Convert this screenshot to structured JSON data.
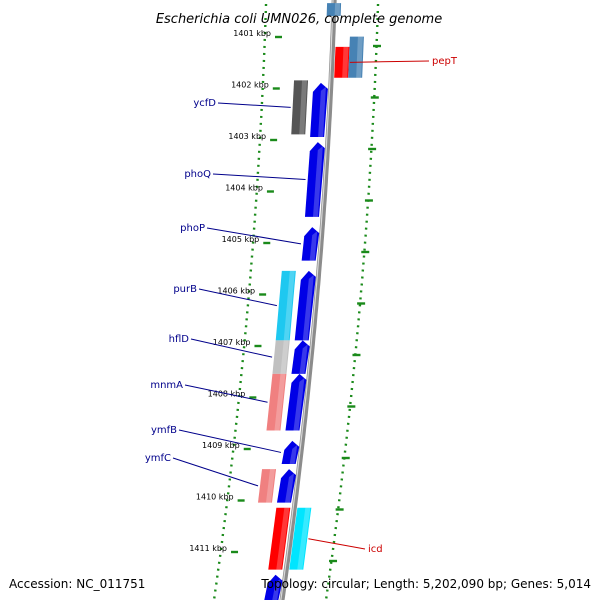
{
  "title": "Escherichia coli UMN026, complete genome",
  "footer": {
    "accession": "Accession: NC_011751",
    "summary": "Topology: circular; Length: 5,202,090 bp; Genes: 5,014"
  },
  "colors": {
    "background": "#ffffff",
    "backbone": "#8c8c8c",
    "tick_dots": "#1a8a1a",
    "label_blue": "#00008b",
    "label_red": "#cc0000",
    "forward_cds": "#0000e6",
    "reverse_red": "#ff0000",
    "steel_blue": "#4682b4",
    "cyan": "#00e5ff",
    "sky_blue": "#1ec8f0",
    "dark_gray": "#555555",
    "light_gray": "#c0c0c0",
    "salmon": "#f08080"
  },
  "ticks": [
    {
      "label": "1401 kbp",
      "pos": 1401
    },
    {
      "label": "1402 kbp",
      "pos": 1402
    },
    {
      "label": "1403 kbp",
      "pos": 1403
    },
    {
      "label": "1404 kbp",
      "pos": 1404
    },
    {
      "label": "1405 kbp",
      "pos": 1405
    },
    {
      "label": "1406 kbp",
      "pos": 1406
    },
    {
      "label": "1407 kbp",
      "pos": 1407
    },
    {
      "label": "1408 kbp",
      "pos": 1408
    },
    {
      "label": "1409 kbp",
      "pos": 1409
    },
    {
      "label": "1410 kbp",
      "pos": 1410
    },
    {
      "label": "1411 kbp",
      "pos": 1411
    }
  ],
  "features": [
    {
      "name": "pepT",
      "strand": "inner",
      "start": 1401.25,
      "end": 1401.85,
      "color": "#ff0000",
      "labeled": true,
      "label_color": "#cc0000"
    },
    {
      "name": "",
      "strand": "far",
      "start": 1401.05,
      "end": 1401.85,
      "color": "#4682b4",
      "labeled": false
    },
    {
      "name": "",
      "strand": "top",
      "start": 1400.4,
      "end": 1400.65,
      "color": "#4682b4",
      "labeled": false
    },
    {
      "name": "ycfD",
      "strand": "outer2",
      "start": 1401.9,
      "end": 1402.95,
      "color": "#555555",
      "labeled": true,
      "label_color": "#00008b"
    },
    {
      "name": "",
      "strand": "outer1",
      "start": 1401.95,
      "end": 1403.0,
      "color": "#0000e6",
      "labeled": false
    },
    {
      "name": "phoQ",
      "strand": "outer1",
      "start": 1403.1,
      "end": 1404.55,
      "color": "#0000e6",
      "labeled": true,
      "label_color": "#00008b"
    },
    {
      "name": "phoP",
      "strand": "outer1",
      "start": 1404.75,
      "end": 1405.4,
      "color": "#0000e6",
      "labeled": true,
      "label_color": "#00008b"
    },
    {
      "name": "purB",
      "strand": "outer2",
      "start": 1405.6,
      "end": 1406.95,
      "color": "#1ec8f0",
      "labeled": true,
      "label_color": "#00008b"
    },
    {
      "name": "",
      "strand": "outer1",
      "start": 1405.6,
      "end": 1406.95,
      "color": "#0000e6",
      "labeled": false
    },
    {
      "name": "hflD",
      "strand": "outer2",
      "start": 1406.95,
      "end": 1407.6,
      "color": "#c0c0c0",
      "labeled": true,
      "label_color": "#00008b"
    },
    {
      "name": "",
      "strand": "outer1",
      "start": 1406.95,
      "end": 1407.6,
      "color": "#0000e6",
      "labeled": false
    },
    {
      "name": "mnmA",
      "strand": "outer2",
      "start": 1407.6,
      "end": 1408.7,
      "color": "#f08080",
      "labeled": true,
      "label_color": "#00008b"
    },
    {
      "name": "",
      "strand": "outer1",
      "start": 1407.6,
      "end": 1408.7,
      "color": "#0000e6",
      "labeled": false
    },
    {
      "name": "ymfB",
      "strand": "outer1",
      "start": 1408.9,
      "end": 1409.35,
      "color": "#0000e6",
      "labeled": true,
      "label_color": "#00008b"
    },
    {
      "name": "ymfC",
      "strand": "outer2",
      "start": 1409.45,
      "end": 1410.1,
      "color": "#f08080",
      "labeled": true,
      "label_color": "#00008b"
    },
    {
      "name": "",
      "strand": "outer1",
      "start": 1409.45,
      "end": 1410.1,
      "color": "#0000e6",
      "labeled": false
    },
    {
      "name": "",
      "strand": "outer1",
      "start": 1410.2,
      "end": 1411.4,
      "color": "#ff0000",
      "labeled": false
    },
    {
      "name": "icd",
      "strand": "inner",
      "start": 1410.2,
      "end": 1411.4,
      "color": "#00e5ff",
      "labeled": true,
      "label_color": "#cc0000"
    },
    {
      "name": "",
      "strand": "outer1",
      "start": 1411.5,
      "end": 1412.3,
      "color": "#0000e6",
      "labeled": false
    }
  ]
}
